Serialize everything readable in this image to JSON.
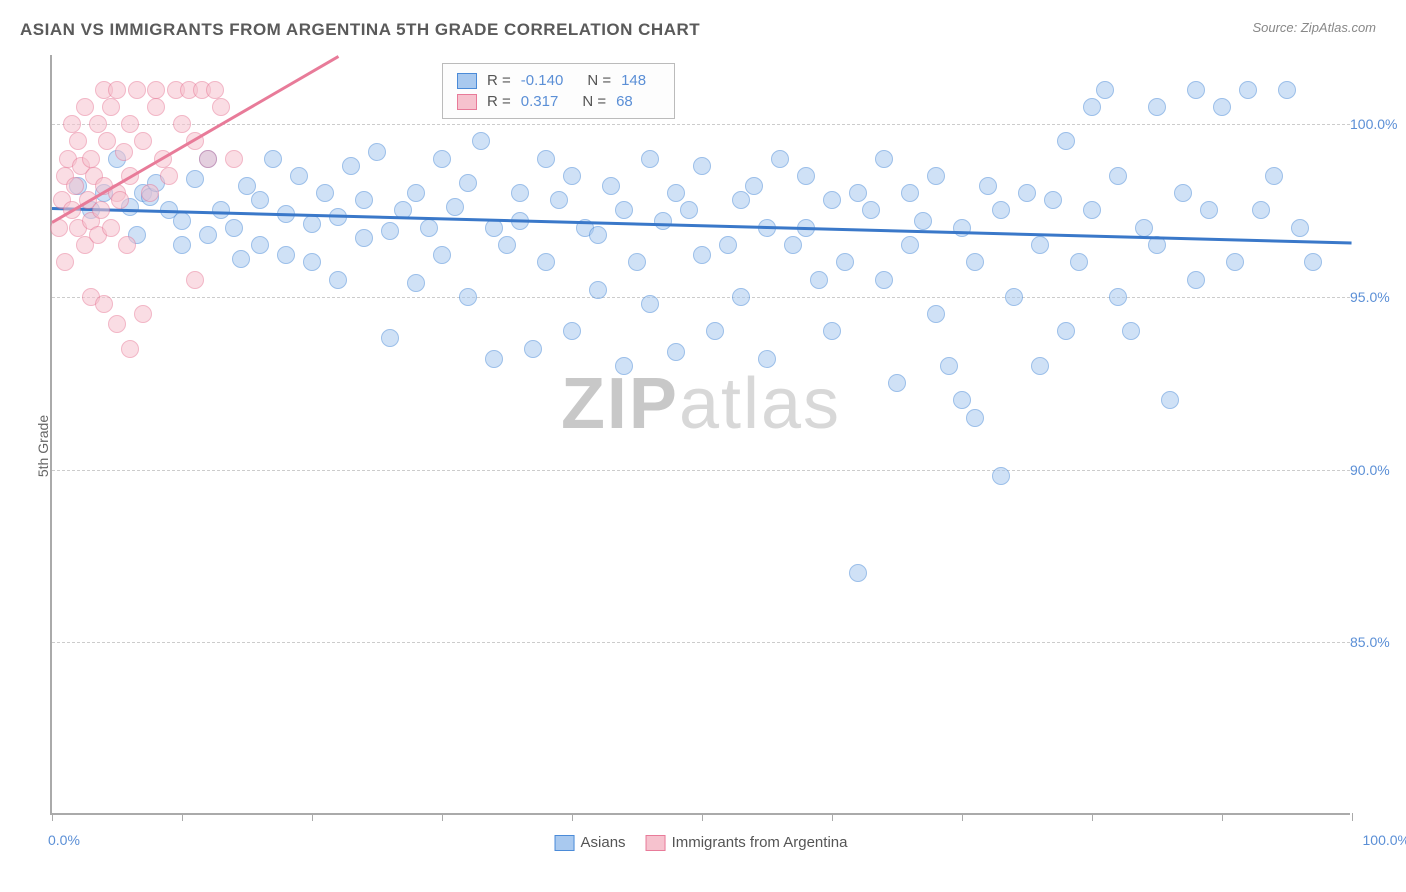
{
  "title": "ASIAN VS IMMIGRANTS FROM ARGENTINA 5TH GRADE CORRELATION CHART",
  "source": "Source: ZipAtlas.com",
  "ylabel": "5th Grade",
  "watermark_a": "ZIP",
  "watermark_b": "atlas",
  "chart": {
    "type": "scatter",
    "background_color": "#ffffff",
    "grid_color": "#cccccc",
    "axis_color": "#aaaaaa",
    "xlim": [
      0,
      100
    ],
    "ylim": [
      80,
      102
    ],
    "xtick_positions": [
      0,
      10,
      20,
      30,
      40,
      50,
      60,
      70,
      80,
      90,
      100
    ],
    "xtick_labels_shown": {
      "0": "0.0%",
      "100": "100.0%"
    },
    "ytick_positions": [
      85,
      90,
      95,
      100
    ],
    "ytick_labels": [
      "85.0%",
      "90.0%",
      "95.0%",
      "100.0%"
    ],
    "point_radius": 9,
    "series": [
      {
        "name": "Asians",
        "color_fill": "#a9c9ef",
        "color_stroke": "#4b8bd8",
        "r": "-0.140",
        "n": "148",
        "regression": {
          "x1": 0,
          "y1": 97.6,
          "x2": 100,
          "y2": 96.6,
          "color": "#3a78c9",
          "width": 2.5
        },
        "points": [
          [
            2,
            98.2
          ],
          [
            3,
            97.5
          ],
          [
            4,
            98.0
          ],
          [
            5,
            99.0
          ],
          [
            6,
            97.6
          ],
          [
            6.5,
            96.8
          ],
          [
            7,
            98.0
          ],
          [
            7.5,
            97.9
          ],
          [
            8,
            98.3
          ],
          [
            9,
            97.5
          ],
          [
            10,
            96.5
          ],
          [
            10,
            97.2
          ],
          [
            11,
            98.4
          ],
          [
            12,
            96.8
          ],
          [
            12,
            99.0
          ],
          [
            13,
            97.5
          ],
          [
            14,
            97.0
          ],
          [
            14.5,
            96.1
          ],
          [
            15,
            98.2
          ],
          [
            16,
            97.8
          ],
          [
            16,
            96.5
          ],
          [
            17,
            99.0
          ],
          [
            18,
            97.4
          ],
          [
            18,
            96.2
          ],
          [
            19,
            98.5
          ],
          [
            20,
            97.1
          ],
          [
            20,
            96.0
          ],
          [
            21,
            98.0
          ],
          [
            22,
            97.3
          ],
          [
            22,
            95.5
          ],
          [
            23,
            98.8
          ],
          [
            24,
            96.7
          ],
          [
            24,
            97.8
          ],
          [
            25,
            99.2
          ],
          [
            26,
            96.9
          ],
          [
            26,
            93.8
          ],
          [
            27,
            97.5
          ],
          [
            28,
            98.0
          ],
          [
            28,
            95.4
          ],
          [
            29,
            97.0
          ],
          [
            30,
            96.2
          ],
          [
            30,
            99.0
          ],
          [
            31,
            97.6
          ],
          [
            32,
            95.0
          ],
          [
            32,
            98.3
          ],
          [
            33,
            99.5
          ],
          [
            34,
            97.0
          ],
          [
            34,
            93.2
          ],
          [
            35,
            96.5
          ],
          [
            36,
            98.0
          ],
          [
            36,
            97.2
          ],
          [
            37,
            93.5
          ],
          [
            38,
            99.0
          ],
          [
            38,
            96.0
          ],
          [
            39,
            97.8
          ],
          [
            40,
            98.5
          ],
          [
            40,
            94.0
          ],
          [
            41,
            97.0
          ],
          [
            42,
            95.2
          ],
          [
            42,
            96.8
          ],
          [
            43,
            98.2
          ],
          [
            44,
            93.0
          ],
          [
            44,
            97.5
          ],
          [
            45,
            96.0
          ],
          [
            46,
            99.0
          ],
          [
            46,
            94.8
          ],
          [
            47,
            97.2
          ],
          [
            48,
            98.0
          ],
          [
            48,
            93.4
          ],
          [
            49,
            97.5
          ],
          [
            50,
            96.2
          ],
          [
            50,
            98.8
          ],
          [
            51,
            94.0
          ],
          [
            52,
            96.5
          ],
          [
            53,
            97.8
          ],
          [
            53,
            95.0
          ],
          [
            54,
            98.2
          ],
          [
            55,
            97.0
          ],
          [
            55,
            93.2
          ],
          [
            56,
            99.0
          ],
          [
            57,
            96.5
          ],
          [
            58,
            98.5
          ],
          [
            58,
            97.0
          ],
          [
            59,
            95.5
          ],
          [
            60,
            97.8
          ],
          [
            60,
            94.0
          ],
          [
            61,
            96.0
          ],
          [
            62,
            98.0
          ],
          [
            62,
            87.0
          ],
          [
            63,
            97.5
          ],
          [
            64,
            95.5
          ],
          [
            64,
            99.0
          ],
          [
            65,
            92.5
          ],
          [
            66,
            98.0
          ],
          [
            66,
            96.5
          ],
          [
            67,
            97.2
          ],
          [
            68,
            94.5
          ],
          [
            68,
            98.5
          ],
          [
            69,
            93.0
          ],
          [
            70,
            97.0
          ],
          [
            70,
            92.0
          ],
          [
            71,
            96.0
          ],
          [
            71,
            91.5
          ],
          [
            72,
            98.2
          ],
          [
            73,
            97.5
          ],
          [
            73,
            89.8
          ],
          [
            74,
            95.0
          ],
          [
            75,
            98.0
          ],
          [
            76,
            96.5
          ],
          [
            76,
            93.0
          ],
          [
            77,
            97.8
          ],
          [
            78,
            99.5
          ],
          [
            78,
            94.0
          ],
          [
            79,
            96.0
          ],
          [
            80,
            100.5
          ],
          [
            80,
            97.5
          ],
          [
            81,
            101.0
          ],
          [
            82,
            95.0
          ],
          [
            82,
            98.5
          ],
          [
            83,
            94.0
          ],
          [
            84,
            97.0
          ],
          [
            85,
            100.5
          ],
          [
            85,
            96.5
          ],
          [
            86,
            92.0
          ],
          [
            87,
            98.0
          ],
          [
            88,
            101.0
          ],
          [
            88,
            95.5
          ],
          [
            89,
            97.5
          ],
          [
            90,
            100.5
          ],
          [
            91,
            96.0
          ],
          [
            92,
            101.0
          ],
          [
            93,
            97.5
          ],
          [
            94,
            98.5
          ],
          [
            95,
            101.0
          ],
          [
            96,
            97.0
          ],
          [
            97,
            96.0
          ]
        ]
      },
      {
        "name": "Immigrants from Argentina",
        "color_fill": "#f6c2ce",
        "color_stroke": "#e87b99",
        "r": "0.317",
        "n": "68",
        "regression": {
          "x1": 0,
          "y1": 97.2,
          "x2": 22,
          "y2": 102,
          "color": "#e87b99",
          "width": 2.5
        },
        "points": [
          [
            0.5,
            97.0
          ],
          [
            0.8,
            97.8
          ],
          [
            1,
            98.5
          ],
          [
            1,
            96.0
          ],
          [
            1.2,
            99.0
          ],
          [
            1.5,
            97.5
          ],
          [
            1.5,
            100.0
          ],
          [
            1.8,
            98.2
          ],
          [
            2,
            97.0
          ],
          [
            2,
            99.5
          ],
          [
            2.2,
            98.8
          ],
          [
            2.5,
            96.5
          ],
          [
            2.5,
            100.5
          ],
          [
            2.8,
            97.8
          ],
          [
            3,
            99.0
          ],
          [
            3,
            97.2
          ],
          [
            3.2,
            98.5
          ],
          [
            3.5,
            100.0
          ],
          [
            3.5,
            96.8
          ],
          [
            3.8,
            97.5
          ],
          [
            4,
            98.2
          ],
          [
            4,
            101.0
          ],
          [
            4.2,
            99.5
          ],
          [
            4.5,
            97.0
          ],
          [
            4.5,
            100.5
          ],
          [
            5,
            98.0
          ],
          [
            5,
            101.0
          ],
          [
            5.2,
            97.8
          ],
          [
            5.5,
            99.2
          ],
          [
            5.8,
            96.5
          ],
          [
            6,
            98.5
          ],
          [
            6,
            100.0
          ],
          [
            6.5,
            101.0
          ],
          [
            7,
            94.5
          ],
          [
            7,
            99.5
          ],
          [
            7.5,
            98.0
          ],
          [
            8,
            101.0
          ],
          [
            8,
            100.5
          ],
          [
            8.5,
            99.0
          ],
          [
            9,
            98.5
          ],
          [
            9.5,
            101.0
          ],
          [
            10,
            100.0
          ],
          [
            10.5,
            101.0
          ],
          [
            11,
            99.5
          ],
          [
            11,
            95.5
          ],
          [
            11.5,
            101.0
          ],
          [
            12,
            99.0
          ],
          [
            12.5,
            101.0
          ],
          [
            13,
            100.5
          ],
          [
            14,
            99.0
          ],
          [
            5,
            94.2
          ],
          [
            6,
            93.5
          ],
          [
            3,
            95.0
          ],
          [
            4,
            94.8
          ]
        ]
      }
    ]
  },
  "legend_stats": {
    "r_label": "R =",
    "n_label": "N ="
  },
  "bottom_legend": [
    {
      "swatch": "blue",
      "label": "Asians"
    },
    {
      "swatch": "pink",
      "label": "Immigrants from Argentina"
    }
  ]
}
